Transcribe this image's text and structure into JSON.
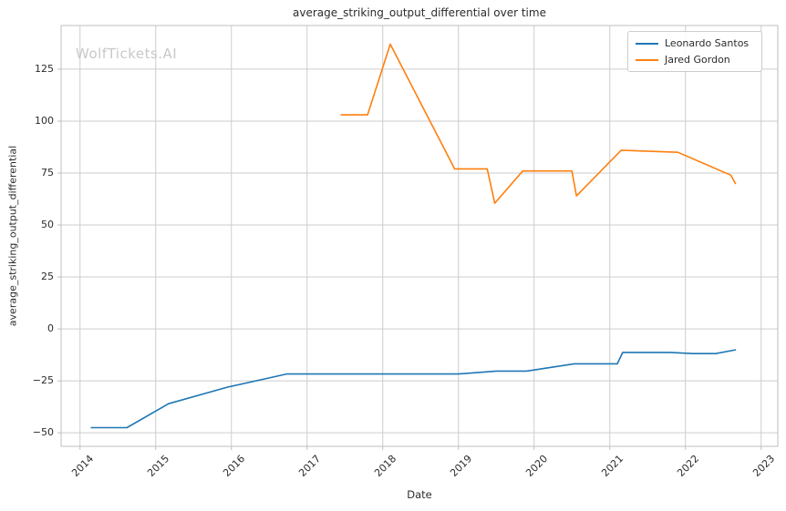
{
  "watermark": "WolfTickets.AI",
  "chart_data": {
    "type": "line",
    "title": "average_striking_output_differential over time",
    "xlabel": "Date",
    "ylabel": "average_striking_output_differential",
    "grid": true,
    "legend_position": "upper right",
    "xlim": [
      2013.75,
      2023.22
    ],
    "ylim": [
      -56.5,
      146
    ],
    "x_ticks": [
      2014,
      2015,
      2016,
      2017,
      2018,
      2019,
      2020,
      2021,
      2022,
      2023
    ],
    "x_tick_labels": [
      "2014",
      "2015",
      "2016",
      "2017",
      "2018",
      "2019",
      "2020",
      "2021",
      "2022",
      "2023"
    ],
    "y_ticks": [
      -50,
      -25,
      0,
      25,
      50,
      75,
      100,
      125
    ],
    "y_tick_labels": [
      "−50",
      "−25",
      "0",
      "25",
      "50",
      "75",
      "100",
      "125"
    ],
    "series": [
      {
        "name": "Leonardo Santos",
        "color": "#1f77b4",
        "points": [
          [
            2014.15,
            -47.5
          ],
          [
            2014.62,
            -47.5
          ],
          [
            2015.17,
            -36.0
          ],
          [
            2015.95,
            -28.0
          ],
          [
            2016.73,
            -21.7
          ],
          [
            2019.0,
            -21.7
          ],
          [
            2019.5,
            -20.3
          ],
          [
            2019.9,
            -20.3
          ],
          [
            2020.53,
            -16.8
          ],
          [
            2021.1,
            -16.8
          ],
          [
            2021.17,
            -11.3
          ],
          [
            2021.8,
            -11.3
          ],
          [
            2022.1,
            -11.9
          ],
          [
            2022.4,
            -11.9
          ],
          [
            2022.66,
            -10.1
          ]
        ]
      },
      {
        "name": "Jared Gordon",
        "color": "#ff7f0e",
        "points": [
          [
            2017.45,
            103.0
          ],
          [
            2017.8,
            103.0
          ],
          [
            2018.1,
            137.0
          ],
          [
            2018.95,
            77.0
          ],
          [
            2019.38,
            77.0
          ],
          [
            2019.48,
            60.5
          ],
          [
            2019.85,
            76.0
          ],
          [
            2020.5,
            76.0
          ],
          [
            2020.56,
            64.0
          ],
          [
            2021.15,
            86.0
          ],
          [
            2021.9,
            85.0
          ],
          [
            2022.6,
            74.0
          ],
          [
            2022.66,
            70.0
          ]
        ]
      }
    ]
  },
  "colors": {
    "grid": "#cdcdcd",
    "spine": "#bfbfbf",
    "text": "#2b2b2b",
    "watermark": "#c8c8c8",
    "background": "#ffffff"
  }
}
